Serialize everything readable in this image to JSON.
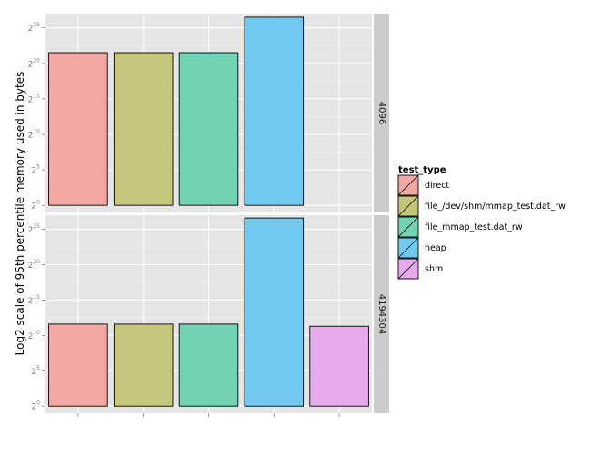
{
  "chart_data": {
    "type": "bar",
    "title": "",
    "xlabel": "",
    "ylabel": "Log2 scale of 95th percentile memory used in bytes",
    "y_scale": "log2",
    "y_tick_exponents": [
      0,
      5,
      10,
      15,
      20,
      25
    ],
    "y_tick_base": "2",
    "ylim_exponent": [
      -1,
      27
    ],
    "grid": true,
    "x_tick_labels_shown": false,
    "categories": [
      "direct",
      "file_/dev/shm/mmap_test.dat_rw",
      "file_mmap_test.dat_rw",
      "heap",
      "shm"
    ],
    "legend": {
      "title": "test_type",
      "position": "right",
      "entries": [
        "direct",
        "file_/dev/shm/mmap_test.dat_rw",
        "file_mmap_test.dat_rw",
        "heap",
        "shm"
      ],
      "colors": [
        "#F2A7A3",
        "#C5C67B",
        "#72D2B3",
        "#72C8EE",
        "#E7A9EE"
      ]
    },
    "panels": [
      {
        "strip_label": "4096",
        "log2_values": [
          21.5,
          21.5,
          21.5,
          26.5,
          null
        ]
      },
      {
        "strip_label": "4194304",
        "log2_values": [
          11.6,
          11.6,
          11.6,
          26.6,
          11.3
        ]
      }
    ]
  }
}
